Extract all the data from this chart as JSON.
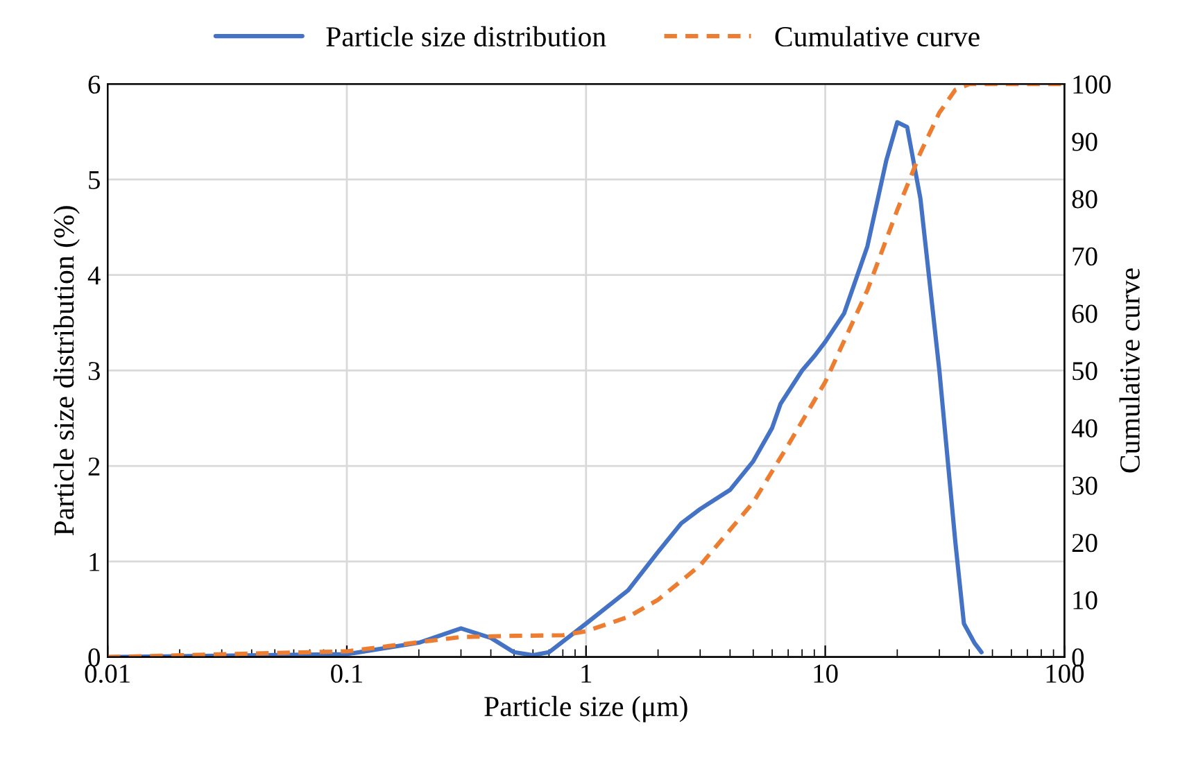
{
  "chart_data": {
    "type": "line",
    "xlabel": "Particle size (μm)",
    "ylabel": "Particle size distribution (%)",
    "y2label": "Cumulative curve",
    "log": "x",
    "xlim": [
      0.01,
      100
    ],
    "xticks": [
      {
        "value": 0.01,
        "label": "0.01"
      },
      {
        "value": 0.1,
        "label": "0.1"
      },
      {
        "value": 1,
        "label": "1"
      },
      {
        "value": 10,
        "label": "10"
      },
      {
        "value": 100,
        "label": "100"
      }
    ],
    "ylim": [
      0,
      6
    ],
    "yticks": [
      0,
      1,
      2,
      3,
      4,
      5,
      6
    ],
    "y2lim": [
      0,
      100
    ],
    "y2ticks": [
      0,
      10,
      20,
      30,
      40,
      50,
      60,
      70,
      80,
      90,
      100
    ],
    "grid": true,
    "legend": "top",
    "series": [
      {
        "name": "Particle size distribution",
        "color": "#4472c4",
        "line_style": "solid",
        "x": [
          0.01,
          0.1,
          0.2,
          0.3,
          0.4,
          0.5,
          0.6,
          0.7,
          1,
          1.5,
          2,
          2.5,
          3,
          4,
          5,
          6,
          6.5,
          8,
          9,
          10,
          12,
          15,
          18,
          20,
          22,
          25,
          30,
          35,
          38,
          42,
          45
        ],
        "values": [
          0,
          0.03,
          0.15,
          0.3,
          0.2,
          0.05,
          0.02,
          0.05,
          0.35,
          0.7,
          1.1,
          1.4,
          1.55,
          1.75,
          2.05,
          2.4,
          2.65,
          3.0,
          3.15,
          3.3,
          3.6,
          4.3,
          5.2,
          5.6,
          5.55,
          4.8,
          3.0,
          1.2,
          0.35,
          0.15,
          0.05
        ]
      },
      {
        "name": "Cumulative curve",
        "color": "#ed7d31",
        "line_style": "dashed",
        "axis": "y2",
        "x": [
          0.01,
          0.1,
          0.3,
          0.5,
          0.8,
          1,
          1.5,
          2,
          3,
          5,
          7,
          10,
          15,
          20,
          25,
          30,
          35,
          40,
          100
        ],
        "values": [
          0,
          1,
          3.5,
          3.7,
          3.8,
          4.5,
          7,
          10,
          16,
          27,
          37,
          48,
          64,
          78,
          88,
          95,
          99,
          100,
          100
        ]
      }
    ]
  }
}
